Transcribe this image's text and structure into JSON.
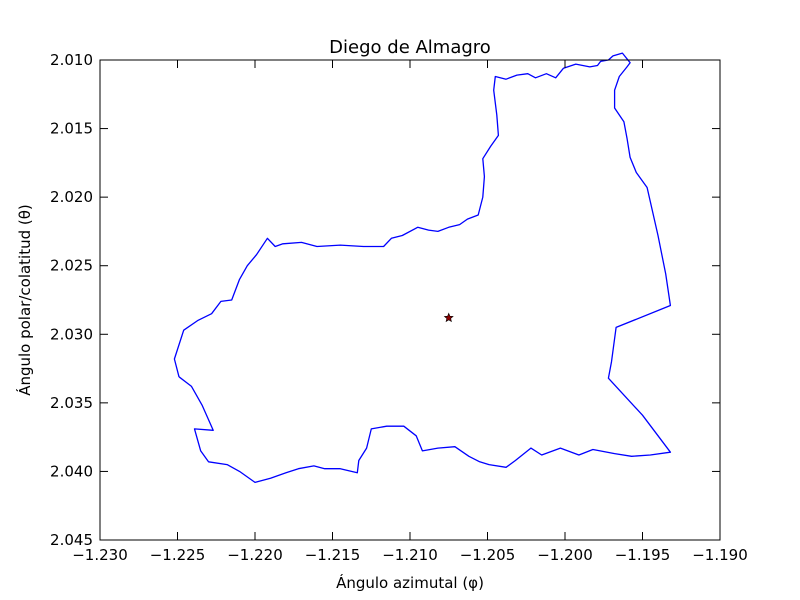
{
  "chart_data": {
    "type": "line",
    "title": "Diego de Almagro",
    "xlabel": "Ángulo azimutal (φ)",
    "ylabel": "Ángulo polar/colatitud (θ)",
    "xlim": [
      -1.23,
      -1.19
    ],
    "ylim": [
      2.045,
      2.01
    ],
    "y_inverted": true,
    "grid": false,
    "x_ticks": [
      -1.23,
      -1.225,
      -1.22,
      -1.215,
      -1.21,
      -1.205,
      -1.2,
      -1.195,
      -1.19
    ],
    "x_tick_labels": [
      "−1.230",
      "−1.225",
      "−1.220",
      "−1.215",
      "−1.210",
      "−1.205",
      "−1.200",
      "−1.195",
      "−1.190"
    ],
    "y_ticks": [
      2.01,
      2.015,
      2.02,
      2.025,
      2.03,
      2.035,
      2.04,
      2.045
    ],
    "y_tick_labels": [
      "2.010",
      "2.015",
      "2.020",
      "2.025",
      "2.030",
      "2.035",
      "2.040",
      "2.045"
    ],
    "series": [
      {
        "color": "#0000ff",
        "marker": "none",
        "points": [
          [
            -1.2249,
            2.0331
          ],
          [
            -1.2252,
            2.0318
          ],
          [
            -1.2246,
            2.0297
          ],
          [
            -1.2237,
            2.029
          ],
          [
            -1.2228,
            2.0285
          ],
          [
            -1.2222,
            2.0276
          ],
          [
            -1.2215,
            2.0275
          ],
          [
            -1.221,
            2.026
          ],
          [
            -1.2205,
            2.025
          ],
          [
            -1.2199,
            2.0242
          ],
          [
            -1.2192,
            2.023
          ],
          [
            -1.2187,
            2.0236
          ],
          [
            -1.2182,
            2.0234
          ],
          [
            -1.217,
            2.0233
          ],
          [
            -1.216,
            2.0236
          ],
          [
            -1.2145,
            2.0235
          ],
          [
            -1.213,
            2.0236
          ],
          [
            -1.2117,
            2.0236
          ],
          [
            -1.2112,
            2.023
          ],
          [
            -1.2105,
            2.0228
          ],
          [
            -1.2095,
            2.0222
          ],
          [
            -1.2088,
            2.0224
          ],
          [
            -1.2082,
            2.0225
          ],
          [
            -1.2075,
            2.0222
          ],
          [
            -1.2068,
            2.022
          ],
          [
            -1.2063,
            2.0216
          ],
          [
            -1.2056,
            2.0213
          ],
          [
            -1.2053,
            2.02
          ],
          [
            -1.2052,
            2.0185
          ],
          [
            -1.2053,
            2.0172
          ],
          [
            -1.2048,
            2.0163
          ],
          [
            -1.2043,
            2.0155
          ],
          [
            -1.2044,
            2.014
          ],
          [
            -1.2046,
            2.0122
          ],
          [
            -1.2045,
            2.0112
          ],
          [
            -1.2038,
            2.0114
          ],
          [
            -1.2031,
            2.0111
          ],
          [
            -1.2024,
            2.011
          ],
          [
            -1.2019,
            2.0113
          ],
          [
            -1.2012,
            2.011
          ],
          [
            -1.2006,
            2.0113
          ],
          [
            -1.2001,
            2.0106
          ],
          [
            -1.1993,
            2.0103
          ],
          [
            -1.1984,
            2.0105
          ],
          [
            -1.1979,
            2.0104
          ],
          [
            -1.1977,
            2.0101
          ],
          [
            -1.1972,
            2.01
          ],
          [
            -1.1969,
            2.0097
          ],
          [
            -1.1963,
            2.0095
          ],
          [
            -1.1958,
            2.0102
          ],
          [
            -1.196,
            2.0105
          ],
          [
            -1.1965,
            2.0112
          ],
          [
            -1.1968,
            2.0122
          ],
          [
            -1.1968,
            2.0135
          ],
          [
            -1.1962,
            2.0145
          ],
          [
            -1.196,
            2.0157
          ],
          [
            -1.1958,
            2.0171
          ],
          [
            -1.1954,
            2.0182
          ],
          [
            -1.1947,
            2.0193
          ],
          [
            -1.194,
            2.0228
          ],
          [
            -1.1935,
            2.0256
          ],
          [
            -1.1932,
            2.0279
          ],
          [
            -1.1967,
            2.0295
          ],
          [
            -1.197,
            2.032
          ],
          [
            -1.1972,
            2.0332
          ],
          [
            -1.195,
            2.0359
          ],
          [
            -1.1932,
            2.0386
          ],
          [
            -1.1945,
            2.0388
          ],
          [
            -1.1957,
            2.0389
          ],
          [
            -1.1968,
            2.0387
          ],
          [
            -1.1982,
            2.0384
          ],
          [
            -1.1991,
            2.0388
          ],
          [
            -1.2003,
            2.0383
          ],
          [
            -1.2015,
            2.0388
          ],
          [
            -1.2022,
            2.0383
          ],
          [
            -1.2032,
            2.0392
          ],
          [
            -1.2038,
            2.0397
          ],
          [
            -1.2049,
            2.0395
          ],
          [
            -1.2055,
            2.0393
          ],
          [
            -1.2062,
            2.0389
          ],
          [
            -1.2071,
            2.0382
          ],
          [
            -1.2082,
            2.0383
          ],
          [
            -1.2092,
            2.0385
          ],
          [
            -1.2096,
            2.0374
          ],
          [
            -1.2104,
            2.0367
          ],
          [
            -1.2115,
            2.0367
          ],
          [
            -1.2125,
            2.0369
          ],
          [
            -1.2128,
            2.0383
          ],
          [
            -1.2133,
            2.0392
          ],
          [
            -1.2134,
            2.0401
          ],
          [
            -1.2145,
            2.0398
          ],
          [
            -1.215,
            2.0398
          ],
          [
            -1.2155,
            2.0398
          ],
          [
            -1.2162,
            2.0396
          ],
          [
            -1.2172,
            2.0398
          ],
          [
            -1.218,
            2.0401
          ],
          [
            -1.219,
            2.0405
          ],
          [
            -1.22,
            2.0408
          ],
          [
            -1.221,
            2.04
          ],
          [
            -1.2218,
            2.0395
          ],
          [
            -1.223,
            2.0393
          ],
          [
            -1.2235,
            2.0385
          ],
          [
            -1.2239,
            2.0369
          ],
          [
            -1.2227,
            2.037
          ],
          [
            -1.2234,
            2.0352
          ],
          [
            -1.2238,
            2.0344
          ],
          [
            -1.2241,
            2.0338
          ],
          [
            -1.2249,
            2.0331
          ]
        ]
      },
      {
        "color": "#8b0000",
        "marker": "star",
        "points": [
          [
            -1.2075,
            2.0288
          ]
        ]
      }
    ]
  }
}
